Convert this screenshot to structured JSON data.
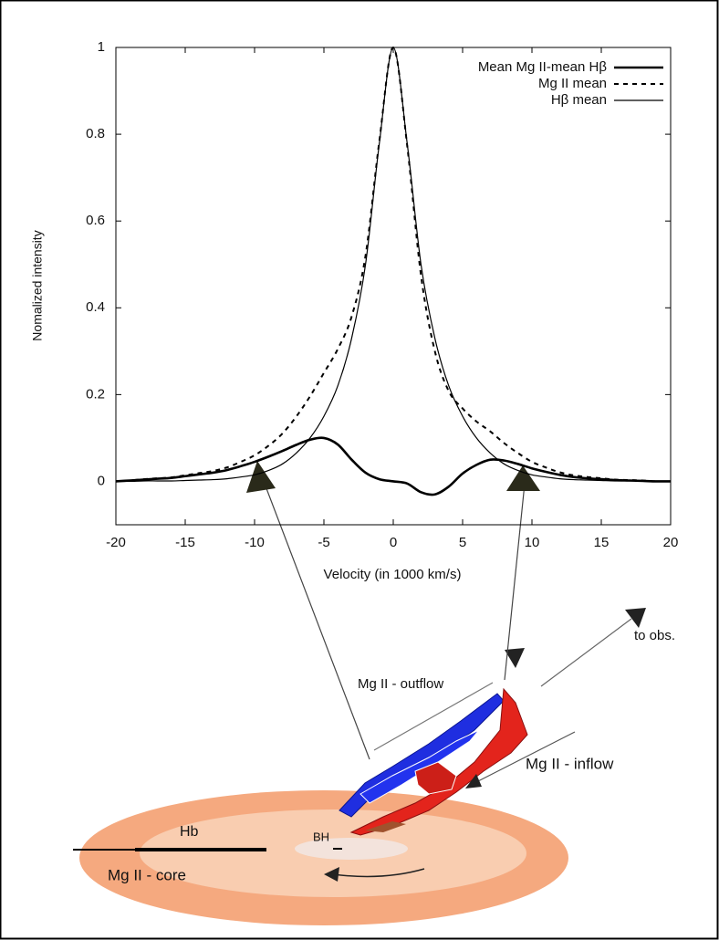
{
  "chart_data": {
    "type": "line",
    "xlabel": "Velocity (in 1000 km/s)",
    "ylabel": "Nomalized intensity",
    "x": [
      -20,
      -19,
      -18,
      -17,
      -16,
      -15,
      -14,
      -13,
      -12,
      -11,
      -10,
      -9,
      -8,
      -7,
      -6,
      -5,
      -4,
      -3,
      -2,
      -1,
      0,
      1,
      2,
      3,
      4,
      5,
      6,
      7,
      8,
      9,
      10,
      11,
      12,
      13,
      14,
      15,
      16,
      17,
      18,
      19,
      20
    ],
    "xlim": [
      -20,
      20
    ],
    "xticks": [
      -20,
      -15,
      -10,
      -5,
      0,
      5,
      10,
      15,
      20
    ],
    "ylim": [
      -0.1,
      1
    ],
    "yticks": [
      0,
      0.2,
      0.4,
      0.6,
      0.8,
      1
    ],
    "grid": false,
    "legend": "top-right",
    "series": [
      {
        "name": "Mean Mg II-mean Hβ",
        "color": "#000000",
        "style": "thick",
        "values": [
          0,
          0.002,
          0.004,
          0.006,
          0.008,
          0.012,
          0.016,
          0.02,
          0.026,
          0.035,
          0.045,
          0.057,
          0.07,
          0.084,
          0.096,
          0.1,
          0.085,
          0.05,
          0.02,
          0.005,
          0,
          -0.005,
          -0.025,
          -0.03,
          -0.012,
          0.018,
          0.038,
          0.05,
          0.048,
          0.04,
          0.03,
          0.022,
          0.015,
          0.01,
          0.007,
          0.005,
          0.003,
          0.002,
          0.001,
          0,
          0
        ]
      },
      {
        "name": "Mg II mean",
        "color": "#000000",
        "style": "dashed",
        "values": [
          0,
          0.002,
          0.005,
          0.007,
          0.009,
          0.014,
          0.019,
          0.024,
          0.032,
          0.045,
          0.06,
          0.082,
          0.11,
          0.149,
          0.196,
          0.25,
          0.305,
          0.38,
          0.52,
          0.785,
          1,
          0.775,
          0.475,
          0.3,
          0.208,
          0.168,
          0.138,
          0.115,
          0.088,
          0.065,
          0.045,
          0.032,
          0.021,
          0.014,
          0.01,
          0.007,
          0.004,
          0.003,
          0.002,
          0,
          0
        ]
      },
      {
        "name": "Hβ mean",
        "color": "#000000",
        "style": "thin",
        "values": [
          0,
          0,
          0.001,
          0.001,
          0.001,
          0.002,
          0.003,
          0.004,
          0.006,
          0.01,
          0.015,
          0.025,
          0.04,
          0.065,
          0.1,
          0.15,
          0.22,
          0.33,
          0.5,
          0.78,
          1,
          0.78,
          0.5,
          0.33,
          0.22,
          0.15,
          0.1,
          0.065,
          0.04,
          0.025,
          0.015,
          0.01,
          0.006,
          0.004,
          0.003,
          0.002,
          0.001,
          0.001,
          0.001,
          0,
          0
        ]
      }
    ]
  },
  "diagram": {
    "to_obs": "to obs.",
    "outflow": "Mg II - outflow",
    "inflow": "Mg II - inflow",
    "hb": "Hb",
    "bh": "BH",
    "core": "Mg II - core"
  }
}
